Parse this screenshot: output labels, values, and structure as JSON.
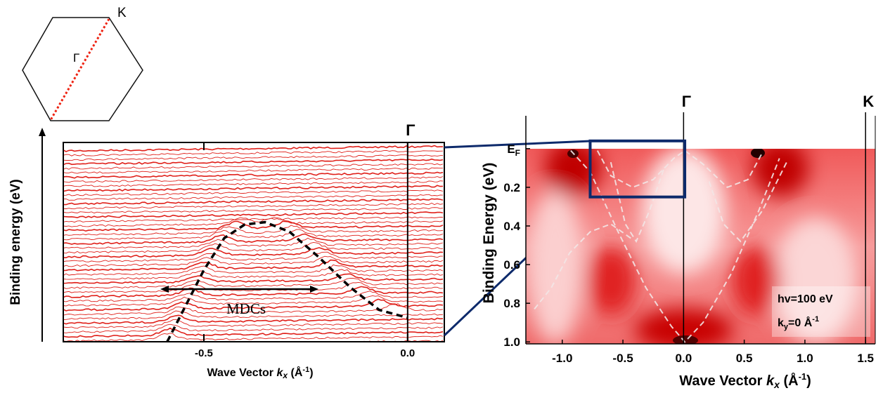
{
  "bz": {
    "labels": [
      "K",
      "Γ"
    ]
  },
  "chart_data": [
    {
      "type": "line",
      "y_label": "Binding energy (eV)",
      "x_label": [
        "Wave Vector ",
        "k",
        "x",
        " (Å",
        "-1",
        ")"
      ],
      "xlim": [
        -0.845,
        0.09
      ],
      "xticks": [
        -0.5,
        {
          "value": 0,
          "label": "0.0"
        }
      ],
      "ylim": [
        0.25,
        0
      ],
      "x": [
        -0.59,
        -0.55,
        -0.5,
        -0.45,
        -0.4,
        -0.35,
        -0.29,
        -0.22,
        -0.14,
        -0.07,
        0
      ],
      "values": [
        0.0,
        0.04,
        0.09,
        0.13,
        0.147,
        0.15,
        0.138,
        0.107,
        0.068,
        0.04,
        0.03
      ],
      "color": "#000000",
      "vlines": [
        {
          "x": 0,
          "label": "Γ"
        }
      ],
      "annotation": "MDCs"
    },
    {
      "type": "line",
      "y_label": "Binding Energy (eV)",
      "x_label": [
        "Wave Vector ",
        "k",
        "x",
        " (Å",
        "-1",
        ")"
      ],
      "xlim": [
        -1.3,
        1.58
      ],
      "xticks": [
        {
          "value": -1,
          "label": "-1.0"
        },
        -0.5,
        {
          "value": 0,
          "label": "0.0"
        },
        0.5,
        {
          "value": 1,
          "label": "1.0"
        },
        1.5
      ],
      "ylim": [
        -0.17,
        1.01
      ],
      "yticks": [
        {
          "value": 0,
          "label": "E",
          "sub": "F"
        },
        0.2,
        0.4,
        0.6,
        0.8,
        {
          "value": 1,
          "label": "1.0"
        }
      ],
      "vlines": [
        {
          "x": 0,
          "label": "Γ"
        },
        {
          "x": 1.5,
          "label": "K"
        }
      ],
      "box": {
        "x": [
          -0.77,
          0.01
        ],
        "y": [
          -0.04,
          0.25
        ],
        "color": "#0d2a6b"
      },
      "series": [
        {
          "color": "#f2e6e6",
          "x": [
            -0.93,
            -0.77,
            -0.54,
            -0.31,
            -0.1,
            0.01,
            0.16,
            0.39,
            0.62,
            0.79
          ],
          "values": [
            0.01,
            0.12,
            0.43,
            0.72,
            0.92,
            1.0,
            0.9,
            0.65,
            0.32,
            0.05
          ]
        },
        {
          "color": "#f2e6e6",
          "x": [
            -0.71,
            -0.6,
            -0.42,
            -0.25,
            -0.08,
            0.01,
            0.16,
            0.36,
            0.53,
            0.65
          ],
          "values": [
            0.01,
            0.14,
            0.2,
            0.16,
            0.05,
            0.01,
            0.08,
            0.2,
            0.16,
            0.02
          ]
        },
        {
          "color": "#f2e6e6",
          "x": [
            -0.6,
            -0.48,
            -0.39,
            -0.28,
            -0.16,
            null,
            0.21,
            0.33,
            0.47,
            0.65,
            0.85
          ],
          "values": [
            0.07,
            0.39,
            0.48,
            0.32,
            0.1,
            null,
            0.17,
            0.39,
            0.48,
            0.32,
            0.07
          ]
        },
        {
          "color": "#f2e6e6",
          "x": [
            -1.23,
            -1.09,
            -0.94,
            -0.77,
            -0.6,
            -0.42
          ],
          "values": [
            0.83,
            0.72,
            0.54,
            0.43,
            0.39,
            0.47
          ]
        }
      ],
      "inset": {
        "line1": "hv=100 eV",
        "line2": [
          "k",
          "y",
          "=0  Å",
          "-1"
        ]
      }
    }
  ]
}
